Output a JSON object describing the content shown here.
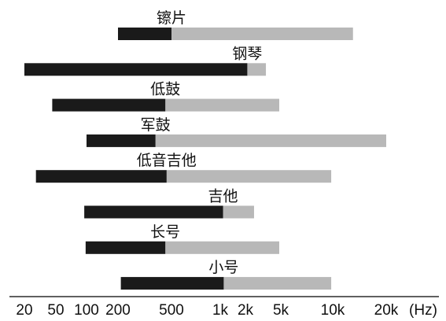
{
  "chart_data": {
    "type": "bar",
    "subtype": "range",
    "x_scale": "irregular-log",
    "x_ticks": [
      "20",
      "50",
      "100",
      "200",
      "500",
      "1k",
      "2k",
      "5k",
      "10k",
      "20k"
    ],
    "x_unit": "(Hz)",
    "legend": "none",
    "grid": false,
    "colors": {
      "fundamental": "#1a1a1a",
      "harmonics": "#b8b8b8",
      "axis": "#000000"
    },
    "series": [
      {
        "name": "镲片",
        "fundamental": [
          200,
          500
        ],
        "harmonics": [
          500,
          13000
        ]
      },
      {
        "name": "钢琴",
        "fundamental": [
          20,
          2100
        ],
        "harmonics": [
          2100,
          3400
        ]
      },
      {
        "name": "低鼓",
        "fundamental": [
          45,
          450
        ],
        "harmonics": [
          450,
          4800
        ]
      },
      {
        "name": "军鼓",
        "fundamental": [
          100,
          380
        ],
        "harmonics": [
          380,
          20000
        ]
      },
      {
        "name": "低音吉他",
        "fundamental": [
          28,
          460
        ],
        "harmonics": [
          460,
          9800
        ]
      },
      {
        "name": "吉他",
        "fundamental": [
          95,
          1080
        ],
        "harmonics": [
          1080,
          2500
        ]
      },
      {
        "name": "长号",
        "fundamental": [
          98,
          450
        ],
        "harmonics": [
          450,
          4800
        ]
      },
      {
        "name": "小号",
        "fundamental": [
          210,
          1100
        ],
        "harmonics": [
          1100,
          9800
        ]
      }
    ]
  }
}
